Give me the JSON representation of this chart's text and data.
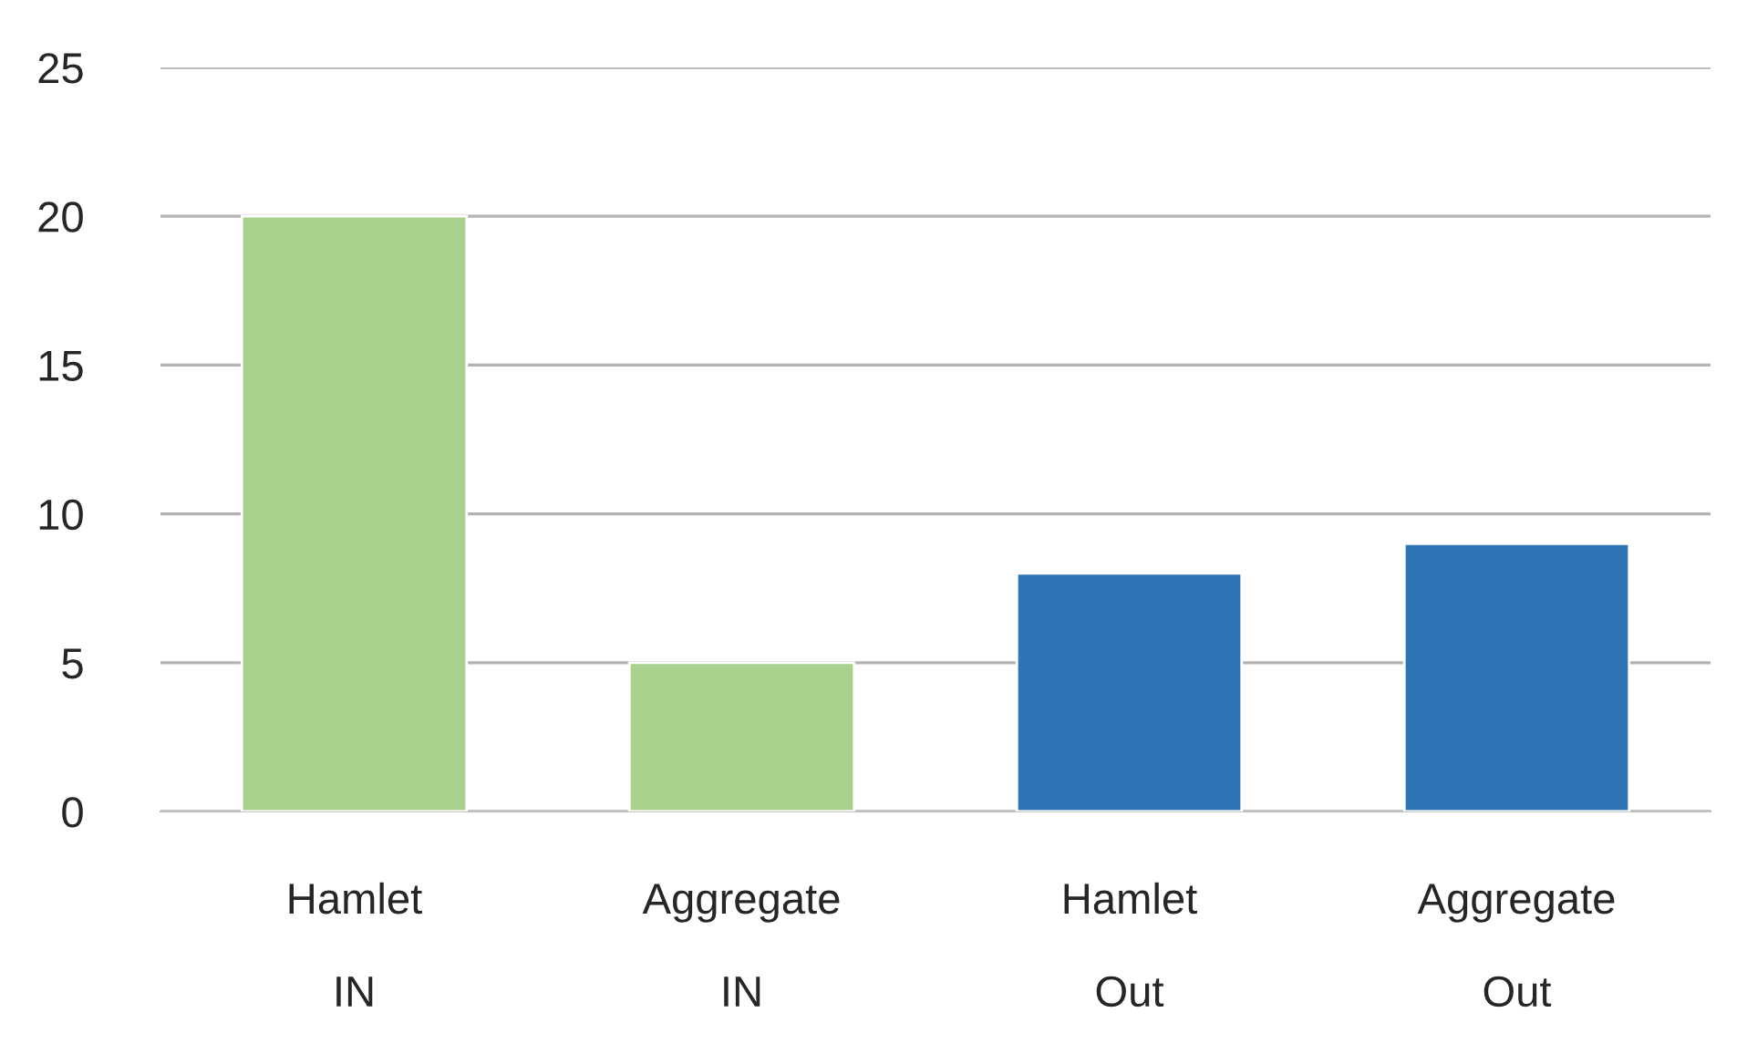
{
  "chart_data": {
    "type": "bar",
    "categories": [
      "Hamlet\n\nIN",
      "Aggregate\n\nIN",
      "Hamlet\n\nOut",
      "Aggregate\n\nOut"
    ],
    "values": [
      20,
      5,
      8,
      9
    ],
    "colors": [
      "#a9d18e",
      "#a9d18e",
      "#2e75b6",
      "#2e75b6"
    ],
    "ylim": [
      0,
      25
    ],
    "yticks": [
      0,
      5,
      10,
      15,
      20,
      25
    ],
    "grid": "y",
    "legend": false
  }
}
